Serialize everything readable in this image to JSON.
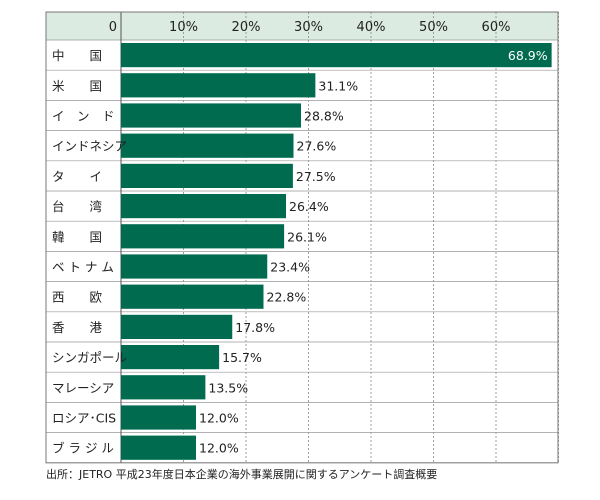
{
  "chart_data": {
    "type": "bar",
    "orientation": "horizontal",
    "categories": [
      "中　　国",
      "米　　国",
      "イ　ン　ド",
      "インドネシア",
      "タ　　イ",
      "台　　湾",
      "韓　　国",
      "ベ ト ナ ム",
      "西　　欧",
      "香　　港",
      "シンガポール",
      "マレーシア",
      "ロシア･CIS",
      "ブ ラ ジ ル"
    ],
    "values": [
      68.9,
      31.1,
      28.8,
      27.6,
      27.5,
      26.4,
      26.1,
      23.4,
      22.8,
      17.8,
      15.7,
      13.5,
      12.0,
      12.0
    ],
    "value_labels": [
      "68.9%",
      "31.1%",
      "28.8%",
      "27.6%",
      "27.5%",
      "26.4%",
      "26.1%",
      "23.4%",
      "22.8%",
      "17.8%",
      "15.7%",
      "13.5%",
      "12.0%",
      "12.0%"
    ],
    "x_ticks": [
      0,
      10,
      20,
      30,
      40,
      50,
      60
    ],
    "x_tick_labels": [
      "0",
      "10%",
      "20%",
      "30%",
      "40%",
      "50%",
      "60%"
    ],
    "xlim": [
      0,
      70
    ],
    "grid": true,
    "bar_color": "#006b4f",
    "header_color": "#dcebe1",
    "first_label_color": "#ffffff",
    "label_color": "#222222"
  },
  "source": "出所：JETRO 平成23年度日本企業の海外事業展開に関するアンケート調査概要"
}
